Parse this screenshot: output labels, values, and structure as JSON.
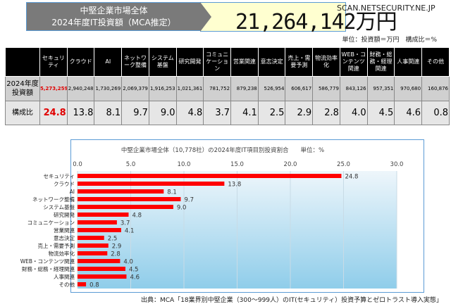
{
  "banner": {
    "line1": "中堅企業市場全体",
    "line2": "2024年度IT投資額（MCA推定）",
    "total": "21,264,142万円"
  },
  "watermark": "SCAN.NETSECURITY.NE.JP",
  "unit_note": "単位：投資額＝万円　構成比＝%",
  "table": {
    "row_headers": [
      "2024年度投資額",
      "構成比"
    ],
    "columns": [
      "セキュリティ",
      "クラウド",
      "AI",
      "ネットワーク整備",
      "システム基盤",
      "研究開発",
      "コミュニケーション",
      "営業関連",
      "意志決定",
      "売上・需要予測",
      "物流効率化",
      "WEB・コンテンツ関連",
      "財務・総務・経理関連",
      "人事関連",
      "その他"
    ],
    "amounts": [
      "5,273,259",
      "2,940,248",
      "1,730,269",
      "2,069,379",
      "1,916,253",
      "1,021,361",
      "781,752",
      "879,238",
      "526,954",
      "606,617",
      "586,779",
      "843,126",
      "957,351",
      "970,680",
      "160,876"
    ],
    "ratios": [
      "24.8",
      "13.8",
      "8.1",
      "9.7",
      "9.0",
      "4.8",
      "3.7",
      "4.1",
      "2.5",
      "2.9",
      "2.8",
      "4.0",
      "4.5",
      "4.6",
      "0.8"
    ]
  },
  "chart_data": {
    "type": "bar",
    "orientation": "horizontal",
    "title": "中堅企業市場全体（10,778社）の2024年度IT項目別投資割合　　単位：%",
    "categories": [
      "セキュリティ",
      "クラウド",
      "AI",
      "ネットワーク整備",
      "システム基盤",
      "研究開発",
      "コミュニケーション",
      "営業関連",
      "意志決定",
      "売上・需要予測",
      "物流効率化",
      "WEB・コンテンツ関連",
      "財務・総務・経理関連",
      "人事関連",
      "その他"
    ],
    "values": [
      24.8,
      13.8,
      8.1,
      9.7,
      9.0,
      4.8,
      3.7,
      4.1,
      2.5,
      2.9,
      2.8,
      4.0,
      4.5,
      4.6,
      0.8
    ],
    "xlim": [
      0,
      30
    ],
    "xticks": [
      "0.0",
      "5.0",
      "10.0",
      "15.0",
      "20.0",
      "25.0",
      "30.0"
    ],
    "bar_color": "#ff0000",
    "grid": true
  },
  "source": "出典：MCA「18業界別中堅企業（300～999人）のIT(セキュリティ）投資予算とゼロトラスト導入実態」"
}
